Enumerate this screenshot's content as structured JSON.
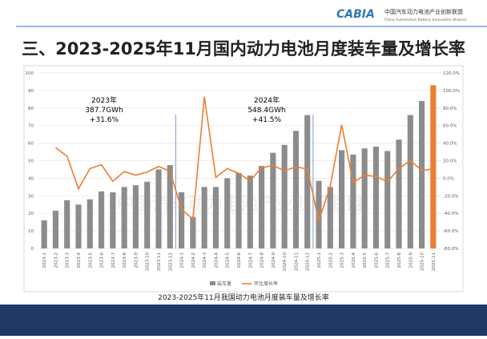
{
  "header": {
    "logo": "CABIA",
    "org_cn": "中国汽车动力电池产业创新联盟",
    "org_en": "China Automotive Battery Innovation Alliance"
  },
  "watermark": "中国汽车动力电池产业创新联盟",
  "chart_data": {
    "type": "bar-line",
    "title": "三、2023-2025年11月国内动力电池月度装车量及增长率",
    "caption": "2023-2025年11月我国动力电池月度装车量及增长率",
    "categories": [
      "2023-1",
      "2023-2",
      "2023-3",
      "2023-4",
      "2023-5",
      "2023-6",
      "2023-7",
      "2023-8",
      "2023-9",
      "2023-10",
      "2023-11",
      "2023-12",
      "2024-1",
      "2024-2",
      "2024-3",
      "2024-4",
      "2024-5",
      "2024-6",
      "2024-7",
      "2024-8",
      "2024-9",
      "2024-10",
      "2024-11",
      "2024-12",
      "2025-1",
      "2025-2",
      "2025-3",
      "2025-4",
      "2025-5",
      "2025-6",
      "2025-7",
      "2025-8",
      "2025-9",
      "2025-10",
      "2025-11"
    ],
    "series": [
      {
        "name": "装车量",
        "color": "#8c8c8c",
        "highlight_color": "#ed7d31",
        "values": [
          16,
          21.5,
          27.5,
          25,
          28,
          32.5,
          32,
          35,
          36,
          38,
          45,
          47.5,
          32,
          18,
          35,
          35,
          40,
          43,
          41.5,
          47,
          54.5,
          59,
          67,
          76,
          38.5,
          35,
          56,
          53.5,
          57,
          58,
          55.5,
          62,
          76,
          84,
          93
        ]
      },
      {
        "name": "环比增长率",
        "color": "#ed7d31",
        "axis": "y2",
        "values": [
          null,
          35,
          25,
          -12,
          11,
          15.5,
          -3.5,
          7.5,
          3.5,
          7,
          13.5,
          8,
          -35.5,
          -46.5,
          93,
          1,
          11,
          5.5,
          -3,
          12,
          14.5,
          8.5,
          13,
          10.5,
          -48.5,
          -9,
          61,
          -5,
          3.5,
          2,
          -4,
          11,
          20,
          9,
          10.5
        ]
      }
    ],
    "ylim": [
      0,
      100
    ],
    "yticks": [
      0,
      10,
      20,
      30,
      40,
      50,
      60,
      70,
      80,
      90,
      100
    ],
    "y2lim": [
      -80,
      120
    ],
    "y2ticks": [
      {
        "value": -80,
        "label": "-80.0%"
      },
      {
        "value": -60,
        "label": "-60.0%"
      },
      {
        "value": -40,
        "label": "-40.0%"
      },
      {
        "value": -20,
        "label": "-20.0%"
      },
      {
        "value": 0,
        "label": "0.0%"
      },
      {
        "value": 20,
        "label": "20.0%"
      },
      {
        "value": 40,
        "label": "40.0%"
      },
      {
        "value": 60,
        "label": "60.0%"
      },
      {
        "value": 80,
        "label": "80.0%"
      },
      {
        "value": 100,
        "label": "100.0%"
      },
      {
        "value": 120,
        "label": "120.0%"
      }
    ],
    "grid": true,
    "annotations": [
      {
        "lines": [
          "2023年",
          "387.7GWh",
          "+31.6%"
        ]
      },
      {
        "lines": [
          "2024年",
          "548.4GWh",
          "+41.5%"
        ]
      }
    ]
  }
}
